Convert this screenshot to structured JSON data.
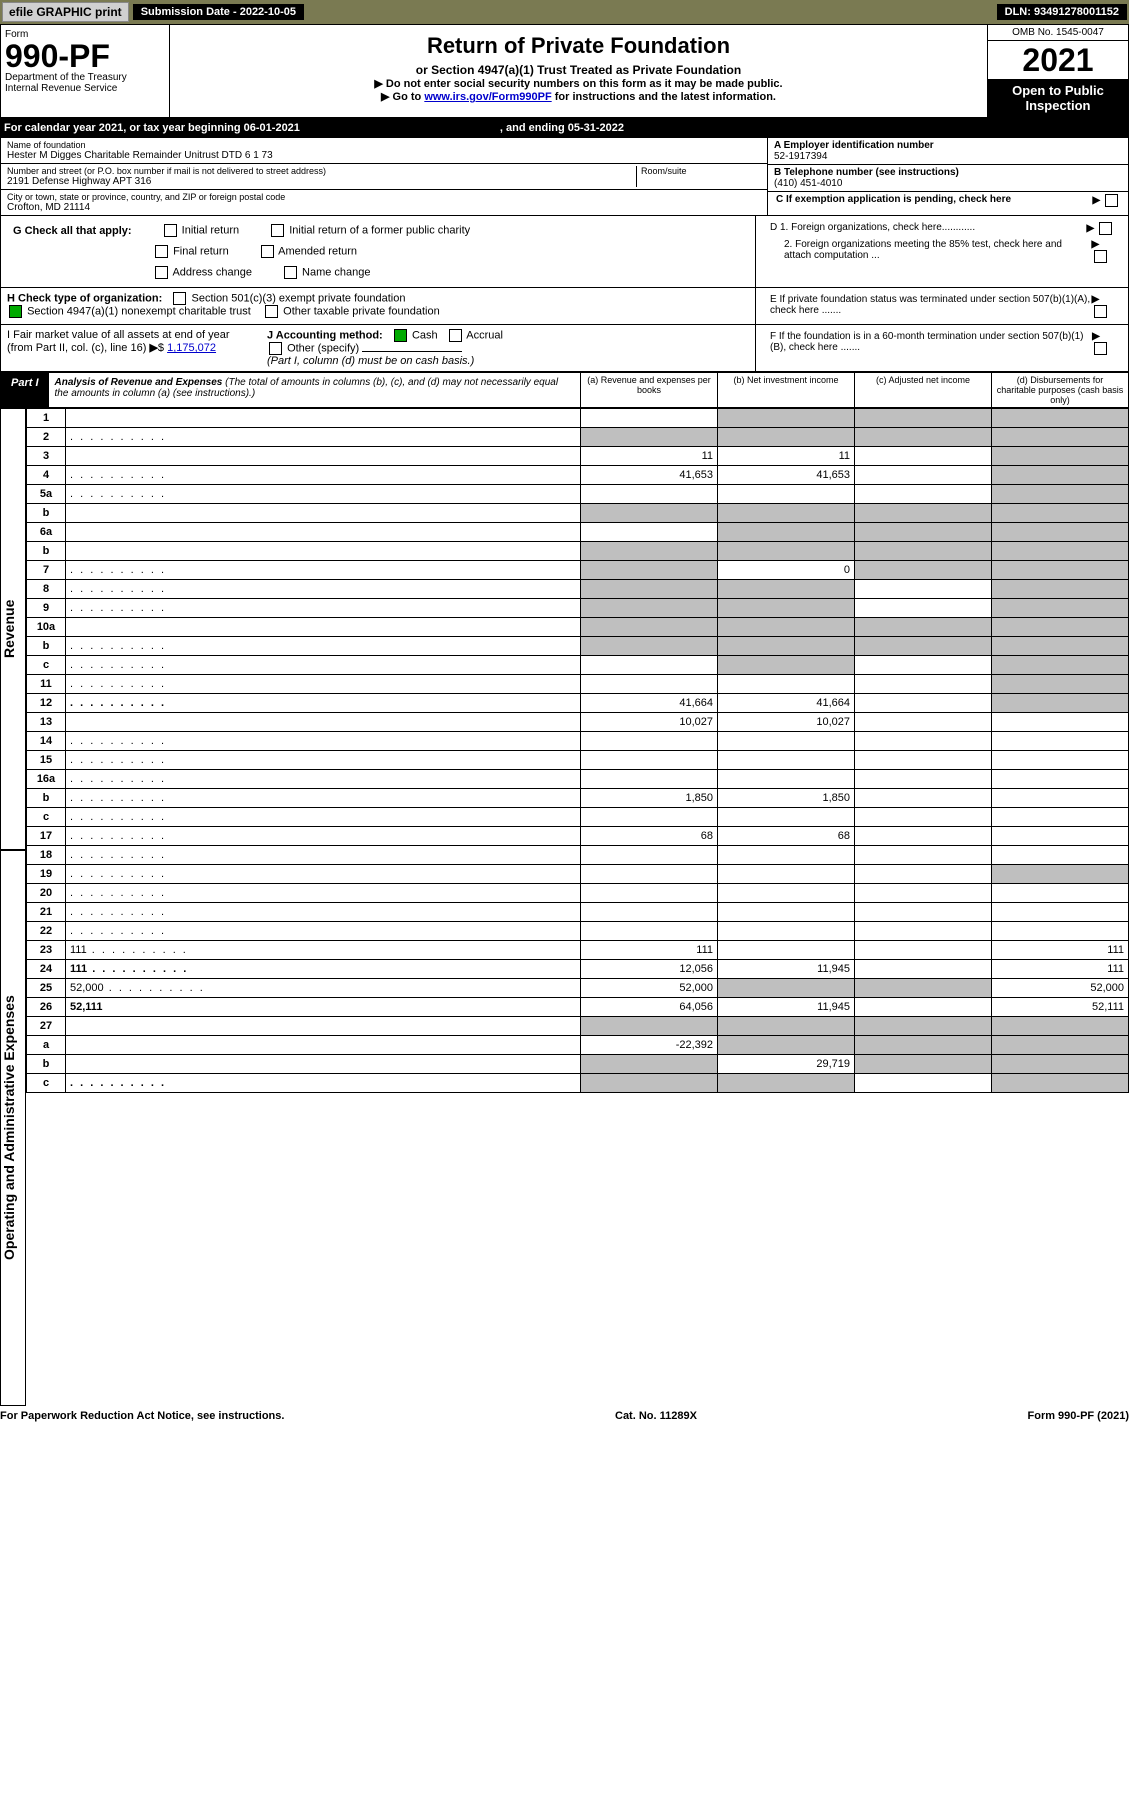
{
  "top": {
    "efile": "efile GRAPHIC print",
    "sub_label": "Submission Date - 2022-10-05",
    "dln": "DLN: 93491278001152"
  },
  "header": {
    "form_word": "Form",
    "form_num": "990-PF",
    "dept": "Department of the Treasury\nInternal Revenue Service",
    "title": "Return of Private Foundation",
    "subtitle": "or Section 4947(a)(1) Trust Treated as Private Foundation",
    "note1": "▶ Do not enter social security numbers on this form as it may be made public.",
    "note2_pre": "▶ Go to ",
    "note2_link": "www.irs.gov/Form990PF",
    "note2_post": " for instructions and the latest information.",
    "omb": "OMB No. 1545-0047",
    "year": "2021",
    "open": "Open to Public Inspection"
  },
  "cal": {
    "line": "For calendar year 2021, or tax year beginning 06-01-2021",
    "ending": ", and ending 05-31-2022"
  },
  "info": {
    "name_lbl": "Name of foundation",
    "name": "Hester M Digges Charitable Remainder Unitrust DTD 6 1 73",
    "addr_lbl": "Number and street (or P.O. box number if mail is not delivered to street address)",
    "addr": "2191 Defense Highway APT 316",
    "room_lbl": "Room/suite",
    "city_lbl": "City or town, state or province, country, and ZIP or foreign postal code",
    "city": "Crofton, MD  21114",
    "ein_lbl": "A Employer identification number",
    "ein": "52-1917394",
    "tel_lbl": "B Telephone number (see instructions)",
    "tel": "(410) 451-4010",
    "c_lbl": "C If exemption application is pending, check here",
    "d1": "D 1. Foreign organizations, check here............",
    "d2": "2. Foreign organizations meeting the 85% test, check here and attach computation ...",
    "e": "E  If private foundation status was terminated under section 507(b)(1)(A), check here .......",
    "f": "F  If the foundation is in a 60-month termination under section 507(b)(1)(B), check here .......",
    "g_lbl": "G Check all that apply:",
    "g_opts": [
      "Initial return",
      "Initial return of a former public charity",
      "Final return",
      "Amended return",
      "Address change",
      "Name change"
    ],
    "h_lbl": "H Check type of organization:",
    "h1": "Section 501(c)(3) exempt private foundation",
    "h2": "Section 4947(a)(1) nonexempt charitable trust",
    "h3": "Other taxable private foundation",
    "i_lbl": "I Fair market value of all assets at end of year (from Part II, col. (c), line 16)",
    "i_val": "1,175,072",
    "j_lbl": "J Accounting method:",
    "j_cash": "Cash",
    "j_acc": "Accrual",
    "j_other": "Other (specify)",
    "j_note": "(Part I, column (d) must be on cash basis.)"
  },
  "part1": {
    "tag": "Part I",
    "title": "Analysis of Revenue and Expenses",
    "note": " (The total of amounts in columns (b), (c), and (d) may not necessarily equal the amounts in column (a) (see instructions).)",
    "cols": [
      "(a)   Revenue and expenses per books",
      "(b)   Net investment income",
      "(c)   Adjusted net income",
      "(d)   Disbursements for charitable purposes (cash basis only)"
    ]
  },
  "rows": [
    {
      "n": "1",
      "d": "",
      "a": "",
      "b": "",
      "c": "",
      "gb": true,
      "gc": true,
      "gd": true
    },
    {
      "n": "2",
      "d": "",
      "dots": true,
      "a": "",
      "b": "",
      "c": "",
      "ga": true,
      "gb": true,
      "gc": true,
      "gd": true
    },
    {
      "n": "3",
      "d": "",
      "a": "11",
      "b": "11",
      "c": "",
      "gd": true
    },
    {
      "n": "4",
      "d": "",
      "dots": true,
      "a": "41,653",
      "b": "41,653",
      "c": "",
      "gd": true
    },
    {
      "n": "5a",
      "d": "",
      "dots": true,
      "a": "",
      "b": "",
      "c": "",
      "gd": true
    },
    {
      "n": "b",
      "d": "",
      "a": "",
      "b": "",
      "c": "",
      "ga": true,
      "gb": true,
      "gc": true,
      "gd": true
    },
    {
      "n": "6a",
      "d": "",
      "a": "",
      "b": "",
      "c": "",
      "gb": true,
      "gc": true,
      "gd": true
    },
    {
      "n": "b",
      "d": "",
      "a": "",
      "b": "",
      "c": "",
      "ga": true,
      "gb": true,
      "gc": true,
      "gd": true
    },
    {
      "n": "7",
      "d": "",
      "dots": true,
      "a": "",
      "b": "0",
      "c": "",
      "ga": true,
      "gc": true,
      "gd": true
    },
    {
      "n": "8",
      "d": "",
      "dots": true,
      "a": "",
      "b": "",
      "c": "",
      "ga": true,
      "gb": true,
      "gd": true
    },
    {
      "n": "9",
      "d": "",
      "dots": true,
      "a": "",
      "b": "",
      "c": "",
      "ga": true,
      "gb": true,
      "gd": true
    },
    {
      "n": "10a",
      "d": "",
      "a": "",
      "b": "",
      "c": "",
      "ga": true,
      "gb": true,
      "gc": true,
      "gd": true
    },
    {
      "n": "b",
      "d": "",
      "dots": true,
      "a": "",
      "b": "",
      "c": "",
      "ga": true,
      "gb": true,
      "gc": true,
      "gd": true
    },
    {
      "n": "c",
      "d": "",
      "dots": true,
      "a": "",
      "b": "",
      "c": "",
      "gb": true,
      "gd": true
    },
    {
      "n": "11",
      "d": "",
      "dots": true,
      "a": "",
      "b": "",
      "c": "",
      "gd": true
    },
    {
      "n": "12",
      "d": "",
      "dots": true,
      "bold": true,
      "a": "41,664",
      "b": "41,664",
      "c": "",
      "gd": true
    },
    {
      "n": "13",
      "d": "",
      "a": "10,027",
      "b": "10,027",
      "c": ""
    },
    {
      "n": "14",
      "d": "",
      "dots": true,
      "a": "",
      "b": "",
      "c": ""
    },
    {
      "n": "15",
      "d": "",
      "dots": true,
      "a": "",
      "b": "",
      "c": ""
    },
    {
      "n": "16a",
      "d": "",
      "dots": true,
      "a": "",
      "b": "",
      "c": ""
    },
    {
      "n": "b",
      "d": "",
      "dots": true,
      "a": "1,850",
      "b": "1,850",
      "c": ""
    },
    {
      "n": "c",
      "d": "",
      "dots": true,
      "a": "",
      "b": "",
      "c": ""
    },
    {
      "n": "17",
      "d": "",
      "dots": true,
      "a": "68",
      "b": "68",
      "c": ""
    },
    {
      "n": "18",
      "d": "",
      "dots": true,
      "a": "",
      "b": "",
      "c": ""
    },
    {
      "n": "19",
      "d": "",
      "dots": true,
      "a": "",
      "b": "",
      "c": "",
      "gd": true
    },
    {
      "n": "20",
      "d": "",
      "dots": true,
      "a": "",
      "b": "",
      "c": ""
    },
    {
      "n": "21",
      "d": "",
      "dots": true,
      "a": "",
      "b": "",
      "c": ""
    },
    {
      "n": "22",
      "d": "",
      "dots": true,
      "a": "",
      "b": "",
      "c": ""
    },
    {
      "n": "23",
      "d": "111",
      "dots": true,
      "a": "111",
      "b": "",
      "c": ""
    },
    {
      "n": "24",
      "d": "111",
      "dots": true,
      "bold": true,
      "a": "12,056",
      "b": "11,945",
      "c": ""
    },
    {
      "n": "25",
      "d": "52,000",
      "dots": true,
      "a": "52,000",
      "b": "",
      "c": "",
      "gb": true,
      "gc": true
    },
    {
      "n": "26",
      "d": "52,111",
      "bold": true,
      "a": "64,056",
      "b": "11,945",
      "c": ""
    },
    {
      "n": "27",
      "d": "",
      "a": "",
      "b": "",
      "c": "",
      "ga": true,
      "gb": true,
      "gc": true,
      "gd": true
    },
    {
      "n": "a",
      "d": "",
      "bold": true,
      "a": "-22,392",
      "b": "",
      "c": "",
      "gb": true,
      "gc": true,
      "gd": true
    },
    {
      "n": "b",
      "d": "",
      "bold": true,
      "a": "",
      "b": "29,719",
      "c": "",
      "ga": true,
      "gc": true,
      "gd": true
    },
    {
      "n": "c",
      "d": "",
      "bold": true,
      "dots": true,
      "a": "",
      "b": "",
      "c": "",
      "ga": true,
      "gb": true,
      "gd": true
    }
  ],
  "side_labels": {
    "rev": "Revenue",
    "exp": "Operating and Administrative Expenses"
  },
  "footer": {
    "l": "For Paperwork Reduction Act Notice, see instructions.",
    "m": "Cat. No. 11289X",
    "r": "Form 990-PF (2021)"
  },
  "colors": {
    "grey": "#bfbfbf",
    "dark_bg": "#7a7a52"
  }
}
